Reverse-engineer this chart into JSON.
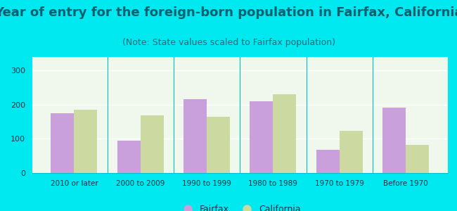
{
  "title": "Year of entry for the foreign-born population in Fairfax, California",
  "subtitle": "(Note: State values scaled to Fairfax population)",
  "categories": [
    "2010 or later",
    "2000 to 2009",
    "1990 to 1999",
    "1980 to 1989",
    "1970 to 1979",
    "Before 1970"
  ],
  "fairfax_values": [
    175,
    95,
    217,
    210,
    68,
    192
  ],
  "california_values": [
    185,
    168,
    165,
    230,
    124,
    82
  ],
  "fairfax_color": "#c9a0dc",
  "california_color": "#ccd9a0",
  "background_outer": "#00e8f0",
  "background_inner_top": "#f0f8ee",
  "background_inner_bottom": "#e0f0d8",
  "ylim": [
    0,
    340
  ],
  "yticks": [
    0,
    100,
    200,
    300
  ],
  "bar_width": 0.35,
  "legend_fairfax": "Fairfax",
  "legend_california": "California",
  "title_fontsize": 13,
  "subtitle_fontsize": 9,
  "title_color": "#006070",
  "subtitle_color": "#336677",
  "tick_color": "#003344",
  "axis_color": "#00c0d0"
}
